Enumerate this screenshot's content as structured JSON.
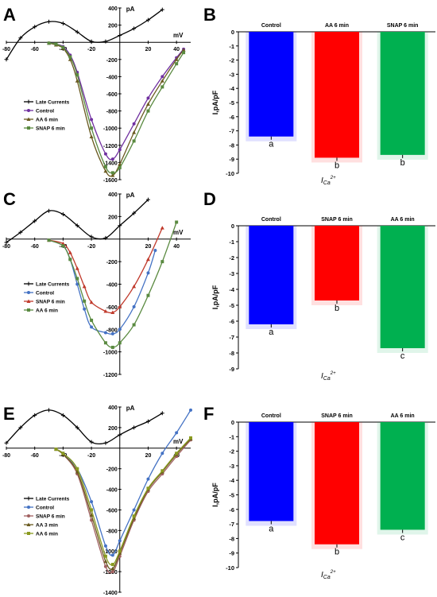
{
  "chart_data": [
    {
      "panel": "A",
      "type": "line",
      "unit_y": "pA",
      "unit_x": "mV",
      "xlim": [
        -80,
        50
      ],
      "ylim": [
        -1600,
        400
      ],
      "x_ticks": [
        -80,
        -60,
        -40,
        -20,
        20,
        40
      ],
      "y_ticks": [
        400,
        200,
        -200,
        -400,
        -600,
        -800,
        -1000,
        -1200,
        -1400,
        -1600
      ],
      "series": [
        {
          "name": "Late Currents",
          "color": "#000000",
          "marker": "plus",
          "x": [
            -80,
            -70,
            -60,
            -50,
            -40,
            -30,
            -20,
            -10,
            0,
            10,
            20,
            30
          ],
          "y": [
            -200,
            50,
            180,
            240,
            220,
            120,
            10,
            10,
            80,
            160,
            260,
            380
          ]
        },
        {
          "name": "Control",
          "color": "#7030a0",
          "marker": "circle",
          "x": [
            -50,
            -45,
            -40,
            -35,
            -30,
            -20,
            -10,
            -5,
            0,
            10,
            20,
            30,
            40,
            45
          ],
          "y": [
            -10,
            -20,
            -50,
            -150,
            -350,
            -900,
            -1300,
            -1360,
            -1250,
            -950,
            -650,
            -400,
            -180,
            -80
          ]
        },
        {
          "name": "AA 6 min",
          "color": "#6a5a20",
          "marker": "triangle",
          "x": [
            -50,
            -45,
            -40,
            -35,
            -30,
            -20,
            -10,
            -5,
            0,
            10,
            20,
            30,
            40,
            45
          ],
          "y": [
            -10,
            -30,
            -70,
            -200,
            -450,
            -1100,
            -1500,
            -1550,
            -1420,
            -1050,
            -720,
            -450,
            -200,
            -90
          ]
        },
        {
          "name": "SNAP 6 min",
          "color": "#5a8a40",
          "marker": "square",
          "x": [
            -50,
            -45,
            -40,
            -35,
            -30,
            -20,
            -10,
            -5,
            0,
            10,
            20,
            30,
            40,
            45
          ],
          "y": [
            -10,
            -20,
            -60,
            -170,
            -380,
            -1000,
            -1450,
            -1520,
            -1460,
            -1150,
            -800,
            -520,
            -250,
            -120
          ]
        }
      ]
    },
    {
      "panel": "B",
      "type": "bar",
      "ylabel": "I,pA/pF",
      "xlabel": "ICa2+",
      "ylim": [
        -10,
        0
      ],
      "y_ticks": [
        0,
        -1,
        -2,
        -3,
        -4,
        -5,
        -6,
        -7,
        -8,
        -9,
        -10
      ],
      "categories": [
        "Control",
        "AA 6 min",
        "SNAP 6 min"
      ],
      "values": [
        -7.4,
        -8.9,
        -8.7
      ],
      "colors": [
        "#0000ff",
        "#ff0000",
        "#00b050"
      ],
      "letters": [
        "a",
        "b",
        "b"
      ]
    },
    {
      "panel": "C",
      "type": "line",
      "unit_y": "pA",
      "unit_x": "mV",
      "xlim": [
        -80,
        50
      ],
      "ylim": [
        -1200,
        400
      ],
      "x_ticks": [
        -80,
        -60,
        -40,
        -20,
        20,
        40
      ],
      "y_ticks": [
        400,
        200,
        -200,
        -400,
        -600,
        -800,
        -1000,
        -1200
      ],
      "series": [
        {
          "name": "Late Currents",
          "color": "#000000",
          "marker": "plus",
          "x": [
            -80,
            -70,
            -60,
            -50,
            -40,
            -30,
            -20,
            -10,
            0,
            10,
            20
          ],
          "y": [
            -30,
            60,
            160,
            250,
            220,
            120,
            20,
            10,
            120,
            230,
            350
          ]
        },
        {
          "name": "Control",
          "color": "#4472c4",
          "marker": "circle",
          "x": [
            -50,
            -40,
            -35,
            -30,
            -25,
            -20,
            -10,
            -5,
            0,
            10,
            20,
            25
          ],
          "y": [
            -10,
            -60,
            -180,
            -400,
            -620,
            -780,
            -830,
            -840,
            -800,
            -600,
            -300,
            -100
          ]
        },
        {
          "name": "SNAP 6 min",
          "color": "#c0392b",
          "marker": "triangle",
          "x": [
            -50,
            -40,
            -35,
            -30,
            -25,
            -20,
            -10,
            -5,
            0,
            10,
            20,
            30
          ],
          "y": [
            -10,
            -40,
            -120,
            -260,
            -420,
            -560,
            -640,
            -650,
            -600,
            -420,
            -180,
            100
          ]
        },
        {
          "name": "AA 6 min",
          "color": "#5a8a40",
          "marker": "square",
          "x": [
            -50,
            -40,
            -35,
            -30,
            -25,
            -20,
            -10,
            -5,
            0,
            10,
            20,
            30,
            40
          ],
          "y": [
            -10,
            -60,
            -180,
            -350,
            -550,
            -720,
            -920,
            -960,
            -920,
            -760,
            -500,
            -200,
            150
          ]
        }
      ]
    },
    {
      "panel": "D",
      "type": "bar",
      "ylabel": "I,pA/pF",
      "xlabel": "ICa2+",
      "ylim": [
        -9,
        0
      ],
      "y_ticks": [
        0,
        -1,
        -2,
        -3,
        -4,
        -5,
        -6,
        -7,
        -8,
        -9
      ],
      "categories": [
        "Control",
        "SNAP 6 min",
        "AA 6 min"
      ],
      "values": [
        -6.2,
        -4.7,
        -7.7
      ],
      "colors": [
        "#0000ff",
        "#ff0000",
        "#00b050"
      ],
      "letters": [
        "a",
        "b",
        "c"
      ]
    },
    {
      "panel": "E",
      "type": "line",
      "unit_y": "pA",
      "unit_x": "mV",
      "xlim": [
        -80,
        50
      ],
      "ylim": [
        -1400,
        400
      ],
      "x_ticks": [
        -80,
        -60,
        -40,
        -20,
        20,
        40
      ],
      "y_ticks": [
        400,
        200,
        -200,
        -400,
        -600,
        -800,
        -1000,
        -1200,
        -1400
      ],
      "series": [
        {
          "name": "Late Currents",
          "color": "#000000",
          "marker": "plus",
          "x": [
            -80,
            -70,
            -60,
            -50,
            -40,
            -30,
            -20,
            -10,
            0,
            10,
            20,
            30
          ],
          "y": [
            50,
            200,
            320,
            370,
            320,
            200,
            60,
            50,
            130,
            200,
            260,
            340
          ]
        },
        {
          "name": "Control",
          "color": "#4472c4",
          "marker": "circle",
          "x": [
            -45,
            -40,
            -30,
            -20,
            -10,
            -5,
            0,
            10,
            20,
            30,
            40,
            50
          ],
          "y": [
            -10,
            -50,
            -200,
            -520,
            -950,
            -1040,
            -900,
            -600,
            -300,
            -50,
            150,
            370
          ]
        },
        {
          "name": "SNAP 6 min",
          "color": "#a06060",
          "marker": "circle",
          "x": [
            -45,
            -40,
            -30,
            -20,
            -10,
            -5,
            0,
            10,
            20,
            30,
            40,
            50
          ],
          "y": [
            -10,
            -60,
            -250,
            -700,
            -1150,
            -1200,
            -1050,
            -700,
            -420,
            -250,
            -80,
            80
          ]
        },
        {
          "name": "AA 3 min",
          "color": "#6a5a20",
          "marker": "triangle",
          "x": [
            -45,
            -40,
            -30,
            -20,
            -10,
            -5,
            0,
            10,
            20,
            30,
            40,
            50
          ],
          "y": [
            -10,
            -60,
            -230,
            -650,
            -1100,
            -1170,
            -1020,
            -680,
            -400,
            -230,
            -60,
            90
          ]
        },
        {
          "name": "AA 6 min",
          "color": "#8a9a20",
          "marker": "square",
          "x": [
            -45,
            -40,
            -30,
            -20,
            -10,
            -5,
            0,
            10,
            20,
            30,
            40,
            50
          ],
          "y": [
            -10,
            -50,
            -200,
            -600,
            -1050,
            -1130,
            -1000,
            -660,
            -390,
            -220,
            -50,
            100
          ]
        }
      ]
    },
    {
      "panel": "F",
      "type": "bar",
      "ylabel": "I,pA/pF",
      "xlabel": "ICa2+",
      "ylim": [
        -10,
        0
      ],
      "y_ticks": [
        0,
        -1,
        -2,
        -3,
        -4,
        -5,
        -6,
        -7,
        -8,
        -9,
        -10
      ],
      "categories": [
        "Control",
        "SNAP 6 min",
        "AA 6 min"
      ],
      "values": [
        -6.8,
        -8.4,
        -7.4
      ],
      "colors": [
        "#0000ff",
        "#ff0000",
        "#00b050"
      ],
      "letters": [
        "a",
        "b",
        "c"
      ]
    }
  ]
}
